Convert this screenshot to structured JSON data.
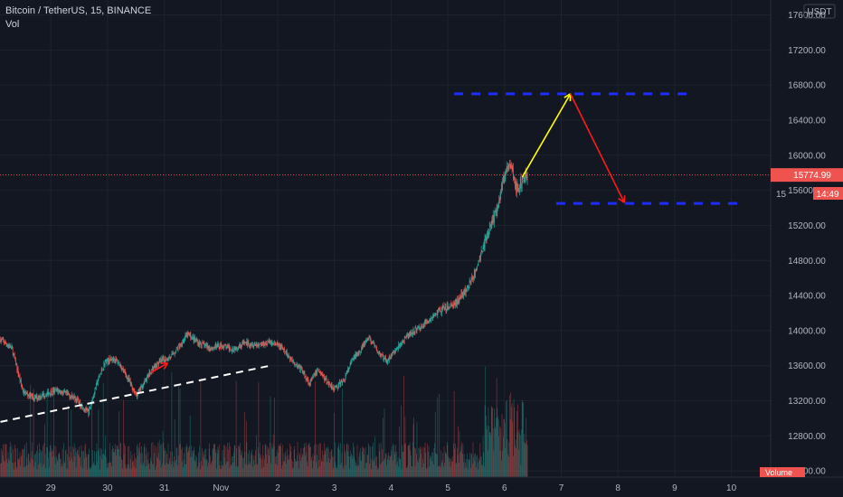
{
  "legend": {
    "symbol": "Bitcoin / TetherUS, 15, BINANCE",
    "indicator": "Vol"
  },
  "currency_label": "USDT",
  "last_price_label": "15774.99",
  "countdown_label": "14:49",
  "partial_tick_label": "15",
  "volume_tag_label": "Volume",
  "colors": {
    "background": "#131722",
    "grid": "#1e222d",
    "up": "#26a69a",
    "down": "#ef5350",
    "price_line": "#ef5350",
    "target_lines": "#1e2cff",
    "arrow_up": "#ffff00",
    "arrow_down": "#ff1a1a",
    "trendline": "#ffffff"
  },
  "chart_data": {
    "type": "candlestick",
    "title": "",
    "xlabel": "",
    "ylabel": "",
    "x_ticks": [
      "29",
      "30",
      "31",
      "Nov",
      "2",
      "3",
      "4",
      "5",
      "6",
      "7",
      "8",
      "9",
      "10"
    ],
    "y_ticks": [
      12400,
      12800,
      13200,
      13600,
      14000,
      14400,
      14800,
      15200,
      15600,
      16000,
      16400,
      16800,
      17200,
      17600
    ],
    "ylim": [
      12330,
      17770
    ],
    "last_price": 15774.99,
    "price_path": [
      [
        28.0,
        13900
      ],
      [
        28.2,
        13800
      ],
      [
        28.4,
        13300
      ],
      [
        28.6,
        13230
      ],
      [
        28.8,
        13280
      ],
      [
        29.0,
        13320
      ],
      [
        29.3,
        13240
      ],
      [
        29.55,
        13060
      ],
      [
        29.7,
        13400
      ],
      [
        29.85,
        13650
      ],
      [
        30.0,
        13680
      ],
      [
        30.1,
        13620
      ],
      [
        30.25,
        13450
      ],
      [
        30.4,
        13260
      ],
      [
        30.55,
        13430
      ],
      [
        30.7,
        13580
      ],
      [
        30.85,
        13660
      ],
      [
        31.0,
        13700
      ],
      [
        31.15,
        13820
      ],
      [
        31.3,
        13960
      ],
      [
        31.5,
        13860
      ],
      [
        31.7,
        13800
      ],
      [
        31.9,
        13830
      ],
      [
        32.1,
        13790
      ],
      [
        32.3,
        13860
      ],
      [
        32.55,
        13840
      ],
      [
        32.75,
        13870
      ],
      [
        32.95,
        13810
      ],
      [
        33.1,
        13690
      ],
      [
        33.3,
        13560
      ],
      [
        33.45,
        13400
      ],
      [
        33.6,
        13560
      ],
      [
        33.75,
        13420
      ],
      [
        33.9,
        13340
      ],
      [
        34.05,
        13430
      ],
      [
        34.2,
        13660
      ],
      [
        34.35,
        13790
      ],
      [
        34.5,
        13920
      ],
      [
        34.65,
        13760
      ],
      [
        34.8,
        13650
      ],
      [
        35.0,
        13800
      ],
      [
        35.15,
        13920
      ],
      [
        35.3,
        14000
      ],
      [
        35.45,
        14060
      ],
      [
        35.6,
        14150
      ],
      [
        35.75,
        14230
      ],
      [
        35.9,
        14260
      ],
      [
        36.05,
        14330
      ],
      [
        36.2,
        14450
      ],
      [
        36.3,
        14560
      ],
      [
        36.4,
        14720
      ],
      [
        36.5,
        14930
      ],
      [
        36.6,
        15100
      ],
      [
        36.7,
        15280
      ],
      [
        36.8,
        15520
      ],
      [
        36.9,
        15820
      ],
      [
        37.0,
        15900
      ],
      [
        37.1,
        15600
      ],
      [
        37.2,
        15720
      ],
      [
        37.3,
        15780
      ]
    ],
    "trendline": {
      "style": "dashed",
      "from": [
        28.0,
        12960
      ],
      "to": [
        32.75,
        13600
      ]
    },
    "target_high": {
      "price": 16700,
      "x_range": [
        36.0,
        40.2
      ]
    },
    "target_low": {
      "price": 15450,
      "x_range": [
        37.8,
        41.0
      ]
    },
    "projection_arrows": [
      {
        "from": [
          37.2,
          15750
        ],
        "to": [
          38.05,
          16700
        ]
      },
      {
        "from": [
          38.05,
          16700
        ],
        "to": [
          39.0,
          15460
        ]
      }
    ],
    "small_arrow": {
      "from": [
        30.65,
        13520
      ],
      "to": [
        30.95,
        13630
      ]
    },
    "volume_max_fraction": 0.72
  }
}
